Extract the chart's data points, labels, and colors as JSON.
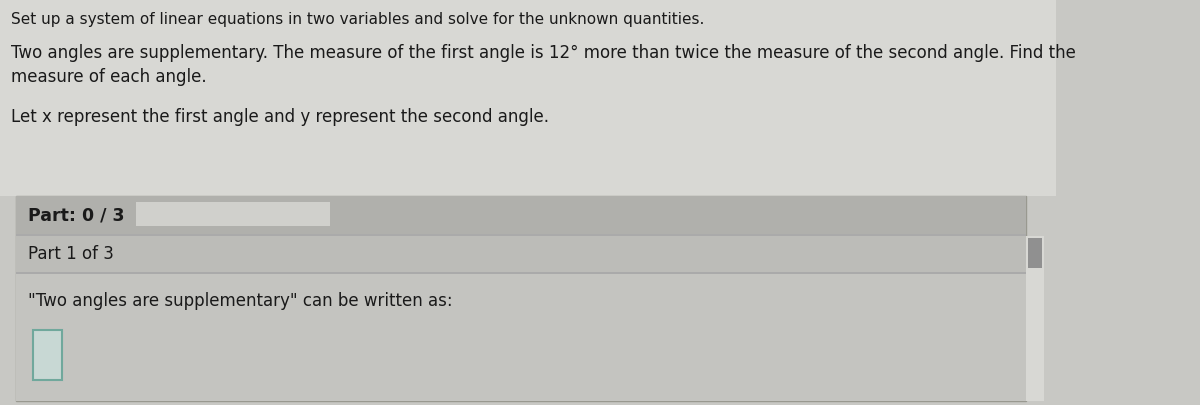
{
  "bg_color": "#c8c8c4",
  "top_area_color": "#d4d4d0",
  "panel_outer_color": "#b8b8b4",
  "part_header_color": "#b0b0ac",
  "part1_header_color": "#bcbcb8",
  "content_area_color": "#c4c4c0",
  "progress_bar_color": "#d0d0cc",
  "scrollbar_color": "#d8d8d4",
  "scrollbar_thumb_color": "#909090",
  "input_box_fill": "#c8d8d4",
  "input_box_border": "#70a89c",
  "font_color": "#1a1a1a",
  "title_text": "Set up a system of linear equations in two variables and solve for the unknown quantities.",
  "problem_line1": "Two angles are supplementary. The measure of the first angle is 12° more than twice the measure of the second angle. Find the",
  "problem_line2": "measure of each angle.",
  "let_text": "Let x represent the first angle and y represent the second angle.",
  "part_label": "Part: 0 / 3",
  "part1_label": "Part 1 of 3",
  "instruction_text": "\"Two angles are supplementary\" can be written as:",
  "title_fontsize": 11.0,
  "body_fontsize": 12.0,
  "part_fontsize": 12.5
}
